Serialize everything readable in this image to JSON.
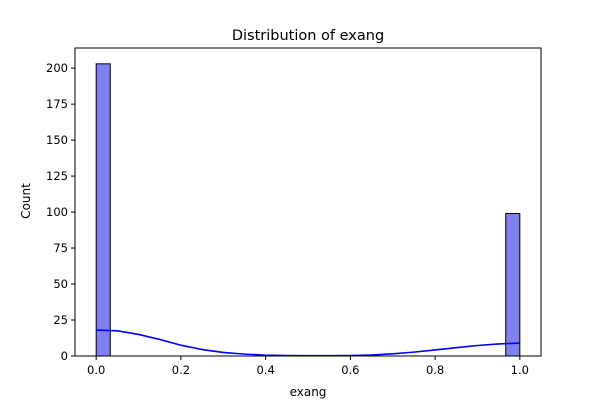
{
  "chart_data": {
    "type": "bar",
    "title": "Distribution of exang",
    "xlabel": "exang",
    "ylabel": "Count",
    "xlim": [
      -0.05,
      1.05
    ],
    "ylim": [
      0,
      214
    ],
    "x_ticks": [
      0.0,
      0.2,
      0.4,
      0.6,
      0.8,
      1.0
    ],
    "x_tick_labels": [
      "0.0",
      "0.2",
      "0.4",
      "0.6",
      "0.8",
      "1.0"
    ],
    "y_ticks": [
      0,
      25,
      50,
      75,
      100,
      125,
      150,
      175,
      200
    ],
    "y_tick_labels": [
      "0",
      "25",
      "50",
      "75",
      "100",
      "125",
      "150",
      "175",
      "200"
    ],
    "bins": [
      {
        "x0": 0.0,
        "x1": 0.0333,
        "count": 203
      },
      {
        "x0": 0.9667,
        "x1": 1.0,
        "count": 99
      }
    ],
    "kde": {
      "x": [
        0.0,
        0.05,
        0.1,
        0.15,
        0.2,
        0.25,
        0.3,
        0.35,
        0.4,
        0.45,
        0.5,
        0.55,
        0.6,
        0.65,
        0.7,
        0.75,
        0.8,
        0.85,
        0.9,
        0.95,
        1.0
      ],
      "y": [
        18,
        17.5,
        15,
        11.5,
        7.5,
        4.5,
        2.5,
        1.3,
        0.6,
        0.3,
        0.2,
        0.2,
        0.3,
        0.7,
        1.5,
        2.7,
        4.2,
        5.8,
        7.3,
        8.4,
        9
      ]
    },
    "grid": false,
    "legend": false,
    "colors": {
      "bar_fill": "#8080f0",
      "bar_edge": "#000000",
      "kde_line": "#0000ff"
    }
  }
}
